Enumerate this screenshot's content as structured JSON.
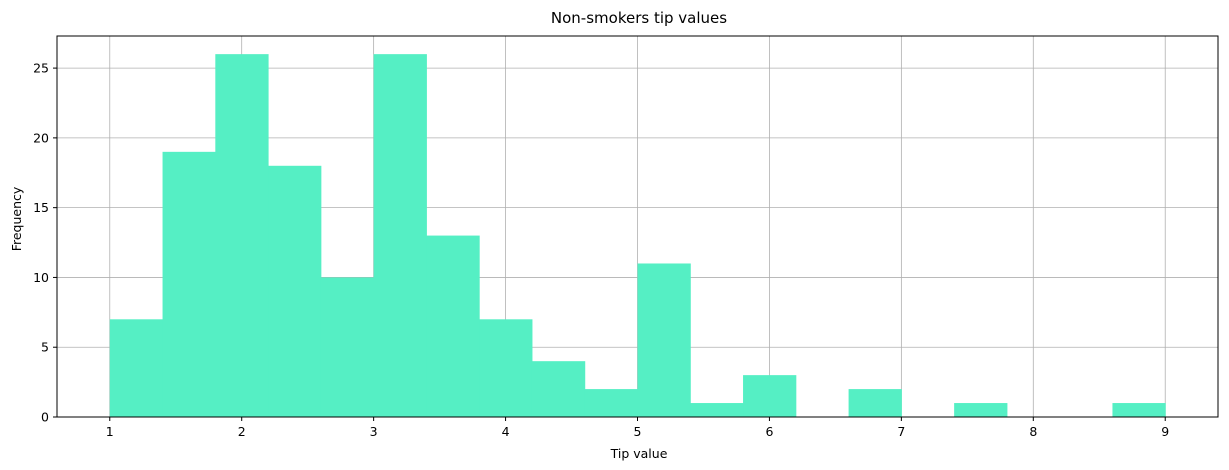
{
  "chart_data": {
    "type": "bar",
    "title": "Non-smokers tip values",
    "xlabel": "Tip value",
    "ylabel": "Frequency",
    "xlim": [
      0.6,
      9.4
    ],
    "ylim": [
      0,
      27.3
    ],
    "xticks": [
      "1",
      "2",
      "3",
      "4",
      "5",
      "6",
      "7",
      "8",
      "9"
    ],
    "yticks": [
      "0",
      "5",
      "10",
      "15",
      "20",
      "25"
    ],
    "grid": true,
    "bar_color": "#55efc4",
    "bins": [
      {
        "x0": 1.0,
        "x1": 1.4,
        "value": 7
      },
      {
        "x0": 1.4,
        "x1": 1.8,
        "value": 19
      },
      {
        "x0": 1.8,
        "x1": 2.2,
        "value": 26
      },
      {
        "x0": 2.2,
        "x1": 2.6,
        "value": 18
      },
      {
        "x0": 2.6,
        "x1": 3.0,
        "value": 10
      },
      {
        "x0": 3.0,
        "x1": 3.4,
        "value": 26
      },
      {
        "x0": 3.4,
        "x1": 3.8,
        "value": 13
      },
      {
        "x0": 3.8,
        "x1": 4.2,
        "value": 7
      },
      {
        "x0": 4.2,
        "x1": 4.6,
        "value": 4
      },
      {
        "x0": 4.6,
        "x1": 5.0,
        "value": 2
      },
      {
        "x0": 5.0,
        "x1": 5.4,
        "value": 11
      },
      {
        "x0": 5.4,
        "x1": 5.8,
        "value": 1
      },
      {
        "x0": 5.8,
        "x1": 6.2,
        "value": 3
      },
      {
        "x0": 6.2,
        "x1": 6.6,
        "value": 0
      },
      {
        "x0": 6.6,
        "x1": 7.0,
        "value": 2
      },
      {
        "x0": 7.0,
        "x1": 7.4,
        "value": 0
      },
      {
        "x0": 7.4,
        "x1": 7.8,
        "value": 1
      },
      {
        "x0": 7.8,
        "x1": 8.2,
        "value": 0
      },
      {
        "x0": 8.2,
        "x1": 8.6,
        "value": 0
      },
      {
        "x0": 8.6,
        "x1": 9.0,
        "value": 1
      }
    ]
  }
}
